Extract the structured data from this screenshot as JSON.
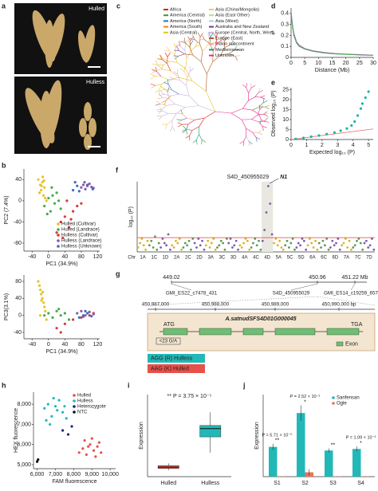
{
  "panel_labels": [
    "a",
    "b",
    "c",
    "d",
    "e",
    "f",
    "g",
    "h",
    "i",
    "j"
  ],
  "photos": {
    "top": "Hulled",
    "bottom": "Hulless"
  },
  "tree": {
    "legend": [
      {
        "name": "Africa",
        "color": "#e31a1c"
      },
      {
        "name": "America (Central)",
        "color": "#33a02c"
      },
      {
        "name": "America (North)",
        "color": "#1f78b4"
      },
      {
        "name": "America (South)",
        "color": "#ff7f00"
      },
      {
        "name": "Asia (Central)",
        "color": "#e6c229"
      },
      {
        "name": "Asia (China/Mongolia)",
        "color": "#fdbf6f"
      },
      {
        "name": "Asia (East Other)",
        "color": "#b2df8a"
      },
      {
        "name": "Asia (West)",
        "color": "#a6cee3"
      },
      {
        "name": "Australia and New Zealand",
        "color": "#6a3d9a"
      },
      {
        "name": "Europe (Central, North, West)",
        "color": "#cab2d6"
      },
      {
        "name": "Europe (East)",
        "color": "#b15928"
      },
      {
        "name": "Indian subcontinent",
        "color": "#fb9a99"
      },
      {
        "name": "Mediterranean",
        "color": "#1b9e77"
      },
      {
        "name": "Unknown",
        "color": "#e7298a"
      }
    ]
  },
  "gene": {
    "top_positions": [
      "449.02",
      "450.96",
      "451.22 Mb"
    ],
    "markers": [
      "GMI_ES22_c7478_431",
      "S4D_450955029",
      "GMI_ES14_c19259_657"
    ],
    "bp_ticks": [
      "450,987,000",
      "450,988,000",
      "450,989,000",
      "450,990,000 bp"
    ],
    "gene_name": "A.satnudSFS4D01G000045",
    "start": "ATG",
    "stop": "TGA",
    "snp": "<23 G/A",
    "exon": "Exon",
    "alleles": [
      {
        "text": "AGG (R) Hulless",
        "color": "#22b8b8"
      },
      {
        "text": "AAG (K) Hulled",
        "color": "#e8504a"
      }
    ]
  },
  "chart_data": [
    {
      "type": "line",
      "x_label": "Distance (Mb)",
      "y_label": "r²",
      "x": [
        0,
        0.5,
        1,
        2,
        3,
        5,
        8,
        12,
        16,
        20,
        25,
        30
      ],
      "series": [
        {
          "color": "#a05ab8",
          "values": [
            0.42,
            0.3,
            0.22,
            0.14,
            0.11,
            0.08,
            0.06,
            0.045,
            0.035,
            0.03,
            0.025,
            0.02
          ]
        },
        {
          "color": "#4caf50",
          "values": [
            0.4,
            0.28,
            0.2,
            0.13,
            0.1,
            0.075,
            0.055,
            0.04,
            0.032,
            0.027,
            0.022,
            0.018
          ]
        }
      ],
      "xlim": [
        0,
        30
      ],
      "xticks": [
        0,
        5,
        10,
        15,
        20,
        25,
        30
      ],
      "ylim": [
        0,
        0.45
      ],
      "yticks": [
        0,
        0.1,
        0.2,
        0.3,
        0.4
      ]
    },
    {
      "type": "scatter",
      "x_label": "Expected log₁₀ (P)",
      "y_label": "Observed log₁₀ (P)",
      "series": [
        {
          "color": "#1fb5a5",
          "x": [
            0.3,
            0.8,
            1.3,
            1.8,
            2.3,
            2.8,
            3.2,
            3.6,
            3.9,
            4.1,
            4.3,
            4.5,
            4.6,
            4.8,
            5.0
          ],
          "values": [
            0.3,
            0.8,
            1.4,
            2,
            2.7,
            3.5,
            4.4,
            5.5,
            7,
            9,
            12,
            15.5,
            18,
            21,
            24
          ]
        }
      ],
      "xlim": [
        0,
        5.3
      ],
      "xticks": [
        0,
        1,
        2,
        3,
        4,
        5
      ],
      "ylim": [
        0,
        26
      ],
      "yticks": [
        0,
        5,
        10,
        15,
        20,
        25
      ]
    },
    {
      "type": "scatter",
      "x_label": "PC1 (34.9%)",
      "y_label": "PC2 (7.4%)",
      "legend": "bottom right",
      "series": [
        {
          "name": "Hulled (Cultivar)",
          "color": "#e6c229",
          "x": [
            -25,
            -20,
            -18,
            -15,
            -12,
            -10,
            -8,
            -22,
            -14,
            -5,
            -17,
            -11
          ],
          "values": [
            40,
            30,
            20,
            35,
            10,
            25,
            5,
            15,
            45,
            0,
            28,
            38
          ]
        },
        {
          "name": "Hulled (Landrace)",
          "color": "#4aa84a",
          "x": [
            -10,
            0,
            5,
            10,
            15,
            20,
            25,
            30,
            8,
            -3
          ],
          "values": [
            -10,
            5,
            -20,
            10,
            -5,
            15,
            0,
            -15,
            25,
            -25
          ]
        },
        {
          "name": "Hulless (Cultivar)",
          "color": "#d43a3a",
          "x": [
            20,
            30,
            40,
            50,
            60,
            70,
            35,
            55,
            45,
            80
          ],
          "values": [
            -60,
            -40,
            -30,
            -50,
            -20,
            -10,
            -70,
            -35,
            0,
            -5
          ]
        },
        {
          "name": "Hulless (Landrace)",
          "color": "#8a56b0",
          "x": [
            80,
            85,
            90,
            95,
            100,
            105,
            110,
            88
          ],
          "values": [
            25,
            30,
            22,
            28,
            32,
            26,
            24,
            35
          ]
        },
        {
          "name": "Hulless (Unknown)",
          "color": "#3a6fc0",
          "x": [
            60,
            70,
            75,
            95,
            108,
            65
          ],
          "values": [
            20,
            28,
            18,
            30,
            22,
            35
          ]
        }
      ],
      "xlim": [
        -60,
        125
      ],
      "xticks": [
        -40,
        0,
        40,
        80,
        120
      ],
      "ylim": [
        -95,
        60
      ],
      "yticks": [
        -80,
        -40,
        0,
        40
      ]
    },
    {
      "type": "scatter",
      "x_label": "PC1 (34.9%)",
      "y_label": "PC3(3.1%)",
      "series": [
        {
          "color": "#e6c229",
          "x": [
            -25,
            -22,
            -20,
            -18,
            -15,
            -12,
            -10,
            -8,
            -20,
            -14,
            -5,
            -17
          ],
          "values": [
            80,
            70,
            60,
            50,
            40,
            30,
            20,
            10,
            0,
            55,
            -10,
            35
          ]
        },
        {
          "color": "#4aa84a",
          "x": [
            -10,
            0,
            10,
            20,
            30,
            40,
            50,
            25
          ],
          "values": [
            0,
            5,
            -5,
            10,
            0,
            5,
            -10,
            15
          ]
        },
        {
          "color": "#d43a3a",
          "x": [
            20,
            40,
            60,
            80,
            100,
            110,
            30
          ],
          "values": [
            -30,
            -20,
            -10,
            -5,
            0,
            5,
            -40
          ]
        },
        {
          "color": "#8a56b0",
          "x": [
            70,
            80,
            90,
            100,
            110,
            85
          ],
          "values": [
            5,
            10,
            0,
            8,
            3,
            -3
          ]
        },
        {
          "color": "#3a6fc0",
          "x": [
            75,
            85,
            95,
            105,
            90
          ],
          "values": [
            -5,
            0,
            5,
            -2,
            10
          ]
        }
      ],
      "xlim": [
        -60,
        125
      ],
      "xticks": [
        -40,
        0,
        40,
        80,
        120
      ],
      "ylim": [
        -55,
        95
      ],
      "yticks": [
        -40,
        0,
        40,
        80
      ]
    },
    {
      "type": "manhattan",
      "x_label": "Chr",
      "y_label": "log₁₀ (P)",
      "categories": [
        "1A",
        "1C",
        "1D",
        "2A",
        "2C",
        "2D",
        "3A",
        "3C",
        "3D",
        "4A",
        "4C",
        "4D",
        "5A",
        "5C",
        "5D",
        "6A",
        "6C",
        "6D",
        "7A",
        "7C",
        "7D"
      ],
      "values": [
        [
          2,
          4,
          6,
          3,
          1,
          5
        ],
        [
          3,
          5,
          2,
          7,
          1,
          4
        ],
        [
          2,
          6,
          4,
          3,
          8,
          1
        ],
        [
          3,
          2,
          5,
          4,
          6,
          1
        ],
        [
          2,
          4,
          3,
          5,
          1,
          6
        ],
        [
          4,
          2,
          6,
          3,
          5,
          1
        ],
        [
          3,
          5,
          2,
          4,
          6,
          1
        ],
        [
          2,
          3,
          5,
          4,
          1,
          6
        ],
        [
          4,
          6,
          2,
          3,
          5,
          1
        ],
        [
          3,
          2,
          4,
          6,
          5,
          1
        ],
        [
          2,
          4,
          6,
          3,
          5,
          1
        ],
        [
          5,
          10,
          18,
          30,
          22,
          8
        ],
        [
          4,
          6,
          3,
          5,
          2,
          1
        ],
        [
          3,
          5,
          2,
          4,
          6,
          1
        ],
        [
          2,
          4,
          3,
          6,
          5,
          1
        ],
        [
          3,
          6,
          4,
          2,
          5,
          1
        ],
        [
          4,
          2,
          5,
          3,
          6,
          1
        ],
        [
          2,
          5,
          3,
          4,
          6,
          1
        ],
        [
          3,
          4,
          6,
          2,
          5,
          1
        ],
        [
          2,
          3,
          5,
          6,
          4,
          1
        ],
        [
          4,
          5,
          2,
          3,
          6,
          1
        ]
      ],
      "colors": [
        "#e0b020",
        "#5a9a50",
        "#7a5ab0"
      ],
      "threshold": 6.5,
      "threshold_color": "#e04040",
      "annotations": [
        "S4D_450955029",
        "N1"
      ],
      "ylim": [
        0,
        32
      ]
    },
    {
      "type": "scatter",
      "x_label": "FAM fluorescence",
      "y_label": "HEX fluorescence",
      "legend": "top right",
      "series": [
        {
          "name": "Hulled",
          "color": "#e8504a",
          "x": [
            8300,
            8500,
            8700,
            8900,
            9100,
            9300,
            9500,
            8600,
            9000,
            9200,
            8800,
            9400
          ],
          "values": [
            5600,
            5800,
            5500,
            6000,
            5700,
            5900,
            5600,
            6200,
            6300,
            5400,
            5900,
            6100
          ]
        },
        {
          "name": "Hulless",
          "color": "#22b8b8",
          "x": [
            6400,
            6600,
            6800,
            7000,
            7200,
            7400,
            7600,
            6700,
            7100,
            6900,
            7500,
            6500
          ],
          "values": [
            7800,
            8000,
            7400,
            7900,
            8200,
            7600,
            7300,
            7000,
            7700,
            8300,
            7900,
            7200
          ]
        },
        {
          "name": "Heterozygote",
          "color": "#1a237e",
          "x": [
            7400,
            7700,
            7900
          ],
          "values": [
            6700,
            6500,
            6900
          ]
        },
        {
          "name": "NTC",
          "color": "#111111",
          "x": [
            6000,
            6050
          ],
          "values": [
            5150,
            5250
          ]
        }
      ],
      "xlim": [
        5800,
        10300
      ],
      "xticks": [
        {
          "value": 6000,
          "label": "6,000"
        },
        {
          "value": 7000,
          "label": "7,000"
        },
        {
          "value": 8000,
          "label": "8,000"
        },
        {
          "value": 9000,
          "label": "9,000"
        },
        {
          "value": 10000,
          "label": "10,000"
        }
      ],
      "ylim": [
        4800,
        8600
      ],
      "yticks": [
        {
          "value": 5000,
          "label": "5,000"
        },
        {
          "value": 6000,
          "label": "6,000"
        },
        {
          "value": 7000,
          "label": "7,000"
        },
        {
          "value": 8000,
          "label": "8,000"
        }
      ]
    },
    {
      "type": "box",
      "y_label": "Expression",
      "categories": [
        "Hulled",
        "Hulless"
      ],
      "colors": [
        "#e8504a",
        "#22b8b8"
      ],
      "min": [
        1.0,
        3.8
      ],
      "q1": [
        1.3,
        6.3
      ],
      "median": [
        1.5,
        7.6
      ],
      "q3": [
        1.75,
        8.1
      ],
      "max": [
        2.1,
        10.2
      ],
      "annotation": "** P = 3.75 × 10⁻⁵",
      "ylim": [
        0,
        13
      ]
    },
    {
      "type": "bar",
      "y_label": "Expression",
      "categories": [
        "S1",
        "S2",
        "S3",
        "S4"
      ],
      "legend": "top right",
      "series": [
        {
          "name": "Sanfensan",
          "color": "#22b8b8",
          "values": [
            5.8,
            12.4,
            5.1,
            5.4
          ],
          "errors": [
            0.6,
            1.5,
            0.4,
            0.5
          ]
        },
        {
          "name": "Ogle",
          "color": "#e8735a",
          "values": [
            0.05,
            0.85,
            0.06,
            0.05
          ],
          "errors": [
            0.02,
            0.6,
            0.03,
            0.03
          ]
        }
      ],
      "sig": [
        "**",
        "*",
        "**",
        "*"
      ],
      "p_labels": [
        "P = 5.71 × 10⁻⁵",
        "P = 2.52 × 10⁻²",
        null,
        "P = 1.09 × 10⁻²"
      ],
      "ylim": [
        0,
        16
      ]
    }
  ]
}
